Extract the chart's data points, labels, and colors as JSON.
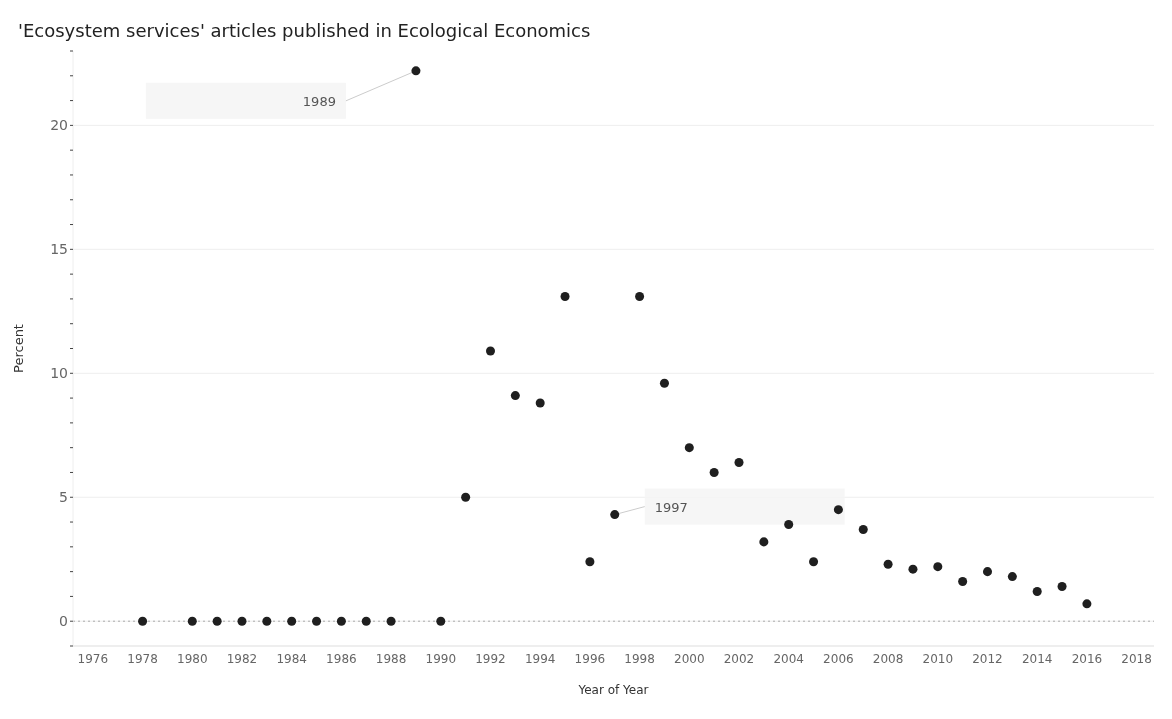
{
  "chart_data": {
    "type": "scatter",
    "title": "'Ecosystem services' articles published in Ecological Economics",
    "xlabel": "Year of Year",
    "ylabel": "Percent",
    "x": [
      1978,
      1980,
      1981,
      1982,
      1983,
      1984,
      1985,
      1986,
      1987,
      1988,
      1989,
      1990,
      1991,
      1992,
      1993,
      1994,
      1995,
      1996,
      1997,
      1998,
      1999,
      2000,
      2001,
      2002,
      2003,
      2004,
      2005,
      2006,
      2007,
      2008,
      2009,
      2010,
      2011,
      2012,
      2013,
      2014,
      2015,
      2016
    ],
    "values": [
      0,
      0,
      0,
      0,
      0,
      0,
      0,
      0,
      0,
      0,
      22.2,
      0,
      5.0,
      10.9,
      9.1,
      8.8,
      13.1,
      2.4,
      4.3,
      13.1,
      9.6,
      7.0,
      6.0,
      6.4,
      3.2,
      3.9,
      2.4,
      4.5,
      3.7,
      2.3,
      2.1,
      2.2,
      1.6,
      2.0,
      1.8,
      1.2,
      1.4,
      0.7
    ],
    "color": "#1f1f1f",
    "marker": "circle",
    "xlim": [
      1975.2,
      2018.7
    ],
    "xticks": [
      1976,
      1978,
      1980,
      1982,
      1984,
      1986,
      1988,
      1990,
      1992,
      1994,
      1996,
      1998,
      2000,
      2002,
      2004,
      2006,
      2008,
      2010,
      2012,
      2014,
      2016,
      2018
    ],
    "ylim": [
      -1,
      23
    ],
    "yticks": [
      {
        "value": -1,
        "label": null
      },
      0,
      {
        "value": 1,
        "label": null
      },
      {
        "value": 2,
        "label": null
      },
      {
        "value": 3,
        "label": null
      },
      {
        "value": 4,
        "label": null
      },
      5,
      {
        "value": 6,
        "label": null
      },
      {
        "value": 7,
        "label": null
      },
      {
        "value": 8,
        "label": null
      },
      {
        "value": 9,
        "label": null
      },
      10,
      {
        "value": 11,
        "label": null
      },
      {
        "value": 12,
        "label": null
      },
      {
        "value": 13,
        "label": null
      },
      {
        "value": 14,
        "label": null
      },
      15,
      {
        "value": 16,
        "label": null
      },
      {
        "value": 17,
        "label": null
      },
      {
        "value": 18,
        "label": null
      },
      {
        "value": 19,
        "label": null
      },
      20,
      {
        "value": 21,
        "label": null
      },
      {
        "value": 22,
        "label": null
      },
      {
        "value": 23,
        "label": null
      }
    ],
    "grid": "y",
    "ref_lines": [
      {
        "axis": "y",
        "value": 0,
        "color": "#aaaaaa",
        "line_style": "dotted"
      }
    ],
    "annotations": [
      {
        "text": "1989",
        "x": 1989,
        "y": 22.2
      },
      {
        "text": "1997",
        "x": 1997,
        "y": 4.3
      }
    ]
  }
}
